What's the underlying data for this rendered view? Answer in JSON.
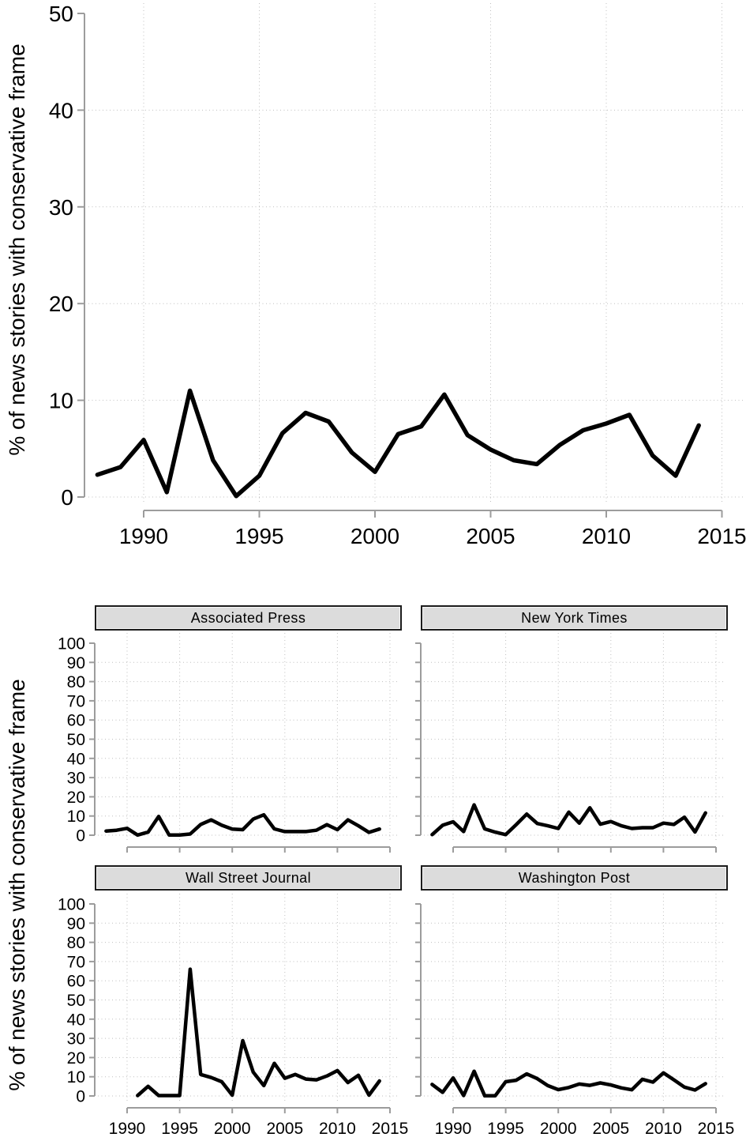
{
  "panels": {
    "ylabel": "% of news stories with conservative frame"
  },
  "chart_data": [
    {
      "id": "overall",
      "type": "line",
      "title": "",
      "ylabel": "% of news stories with conservative frame",
      "xlabel": "",
      "xlim": [
        1988,
        2015
      ],
      "ylim": [
        0,
        50
      ],
      "grid": "dotted",
      "legend": "none",
      "line_color": "#000000",
      "xticks": [
        1990,
        1995,
        2000,
        2005,
        2010,
        2015
      ],
      "yticks": [
        0,
        10,
        20,
        30,
        40,
        50
      ],
      "x": [
        1988,
        1989,
        1990,
        1991,
        1992,
        1993,
        1994,
        1995,
        1996,
        1997,
        1998,
        1999,
        2000,
        2001,
        2002,
        2003,
        2004,
        2005,
        2006,
        2007,
        2008,
        2009,
        2010,
        2011,
        2012,
        2013,
        2014
      ],
      "y": [
        2.3,
        3.1,
        5.9,
        0.5,
        11.0,
        3.8,
        0.1,
        2.2,
        6.6,
        8.7,
        7.8,
        4.6,
        2.6,
        6.5,
        7.3,
        10.6,
        6.4,
        4.9,
        3.8,
        3.4,
        5.4,
        6.9,
        7.6,
        8.5,
        4.3,
        2.2,
        7.4
      ]
    },
    {
      "id": "associated-press",
      "type": "line",
      "title": "Associated Press",
      "xlim": [
        1988,
        2015
      ],
      "ylim": [
        0,
        100
      ],
      "grid": "dotted",
      "line_color": "#000000",
      "xticks": [
        1990,
        1995,
        2000,
        2005,
        2010,
        2015
      ],
      "yticks": [
        0,
        10,
        20,
        30,
        40,
        50,
        60,
        70,
        80,
        90,
        100
      ],
      "x": [
        1988,
        1989,
        1990,
        1991,
        1992,
        1993,
        1994,
        1995,
        1996,
        1997,
        1998,
        1999,
        2000,
        2001,
        2002,
        2003,
        2004,
        2005,
        2006,
        2007,
        2008,
        2009,
        2010,
        2011,
        2012,
        2013,
        2014
      ],
      "y": [
        2.2,
        2.6,
        3.6,
        0.1,
        1.6,
        9.8,
        0.1,
        0.1,
        0.6,
        5.6,
        8.0,
        5.2,
        3.2,
        2.9,
        8.4,
        10.6,
        3.3,
        1.9,
        1.9,
        1.9,
        2.6,
        5.5,
        2.9,
        8.0,
        4.9,
        1.5,
        3.2
      ]
    },
    {
      "id": "new-york-times",
      "type": "line",
      "title": "New York Times",
      "xlim": [
        1988,
        2015
      ],
      "ylim": [
        0,
        100
      ],
      "grid": "dotted",
      "line_color": "#000000",
      "xticks": [
        1990,
        1995,
        2000,
        2005,
        2010,
        2015
      ],
      "yticks": [
        0,
        10,
        20,
        30,
        40,
        50,
        60,
        70,
        80,
        90,
        100
      ],
      "x": [
        1988,
        1989,
        1990,
        1991,
        1992,
        1993,
        1994,
        1995,
        1996,
        1997,
        1998,
        1999,
        2000,
        2001,
        2002,
        2003,
        2004,
        2005,
        2006,
        2007,
        2008,
        2009,
        2010,
        2011,
        2012,
        2013,
        2014
      ],
      "y": [
        0.3,
        5.2,
        7.0,
        1.9,
        15.8,
        3.3,
        1.6,
        0.3,
        5.5,
        11.0,
        6.1,
        4.9,
        3.5,
        12.0,
        6.3,
        14.3,
        5.7,
        7.1,
        4.9,
        3.5,
        3.9,
        3.9,
        6.3,
        5.6,
        9.4,
        1.7,
        11.6
      ]
    },
    {
      "id": "wall-street-journal",
      "type": "line",
      "title": "Wall Street Journal",
      "xlim": [
        1988,
        2015
      ],
      "ylim": [
        0,
        100
      ],
      "grid": "dotted",
      "line_color": "#000000",
      "xticks": [
        1990,
        1995,
        2000,
        2005,
        2010,
        2015
      ],
      "yticks": [
        0,
        10,
        20,
        30,
        40,
        50,
        60,
        70,
        80,
        90,
        100
      ],
      "x": [
        1991,
        1992,
        1993,
        1994,
        1995,
        1996,
        1997,
        1998,
        1999,
        2000,
        2001,
        2002,
        2003,
        2004,
        2005,
        2006,
        2007,
        2008,
        2009,
        2010,
        2011,
        2012,
        2013,
        2014
      ],
      "y": [
        0.2,
        5.0,
        0.2,
        0.2,
        0.2,
        66.0,
        11.2,
        9.6,
        7.4,
        0.4,
        28.8,
        12.4,
        5.4,
        17.0,
        9.2,
        11.2,
        8.8,
        8.4,
        10.4,
        13.2,
        7.0,
        10.8,
        0.4,
        7.8
      ]
    },
    {
      "id": "washington-post",
      "type": "line",
      "title": "Washington Post",
      "xlim": [
        1988,
        2015
      ],
      "ylim": [
        0,
        100
      ],
      "grid": "dotted",
      "line_color": "#000000",
      "xticks": [
        1990,
        1995,
        2000,
        2005,
        2010,
        2015
      ],
      "yticks": [
        0,
        10,
        20,
        30,
        40,
        50,
        60,
        70,
        80,
        90,
        100
      ],
      "x": [
        1988,
        1989,
        1990,
        1991,
        1992,
        1993,
        1994,
        1995,
        1996,
        1997,
        1998,
        1999,
        2000,
        2001,
        2002,
        2003,
        2004,
        2005,
        2006,
        2007,
        2008,
        2009,
        2010,
        2011,
        2012,
        2013,
        2014
      ],
      "y": [
        6.0,
        1.9,
        9.4,
        0.2,
        12.9,
        0.1,
        0.1,
        7.4,
        8.2,
        11.5,
        9.0,
        5.4,
        3.3,
        4.4,
        6.2,
        5.5,
        6.8,
        5.7,
        4.2,
        3.2,
        8.7,
        7.2,
        12.0,
        8.4,
        4.6,
        3.1,
        6.4
      ]
    }
  ],
  "style": {
    "axis_color": "#9c9c9c",
    "grid_color": "#bfbfbf",
    "text_color": "#000000",
    "header_fill": "#dcdcdc",
    "header_border": "#1c1c1c",
    "background": "#ffffff"
  }
}
